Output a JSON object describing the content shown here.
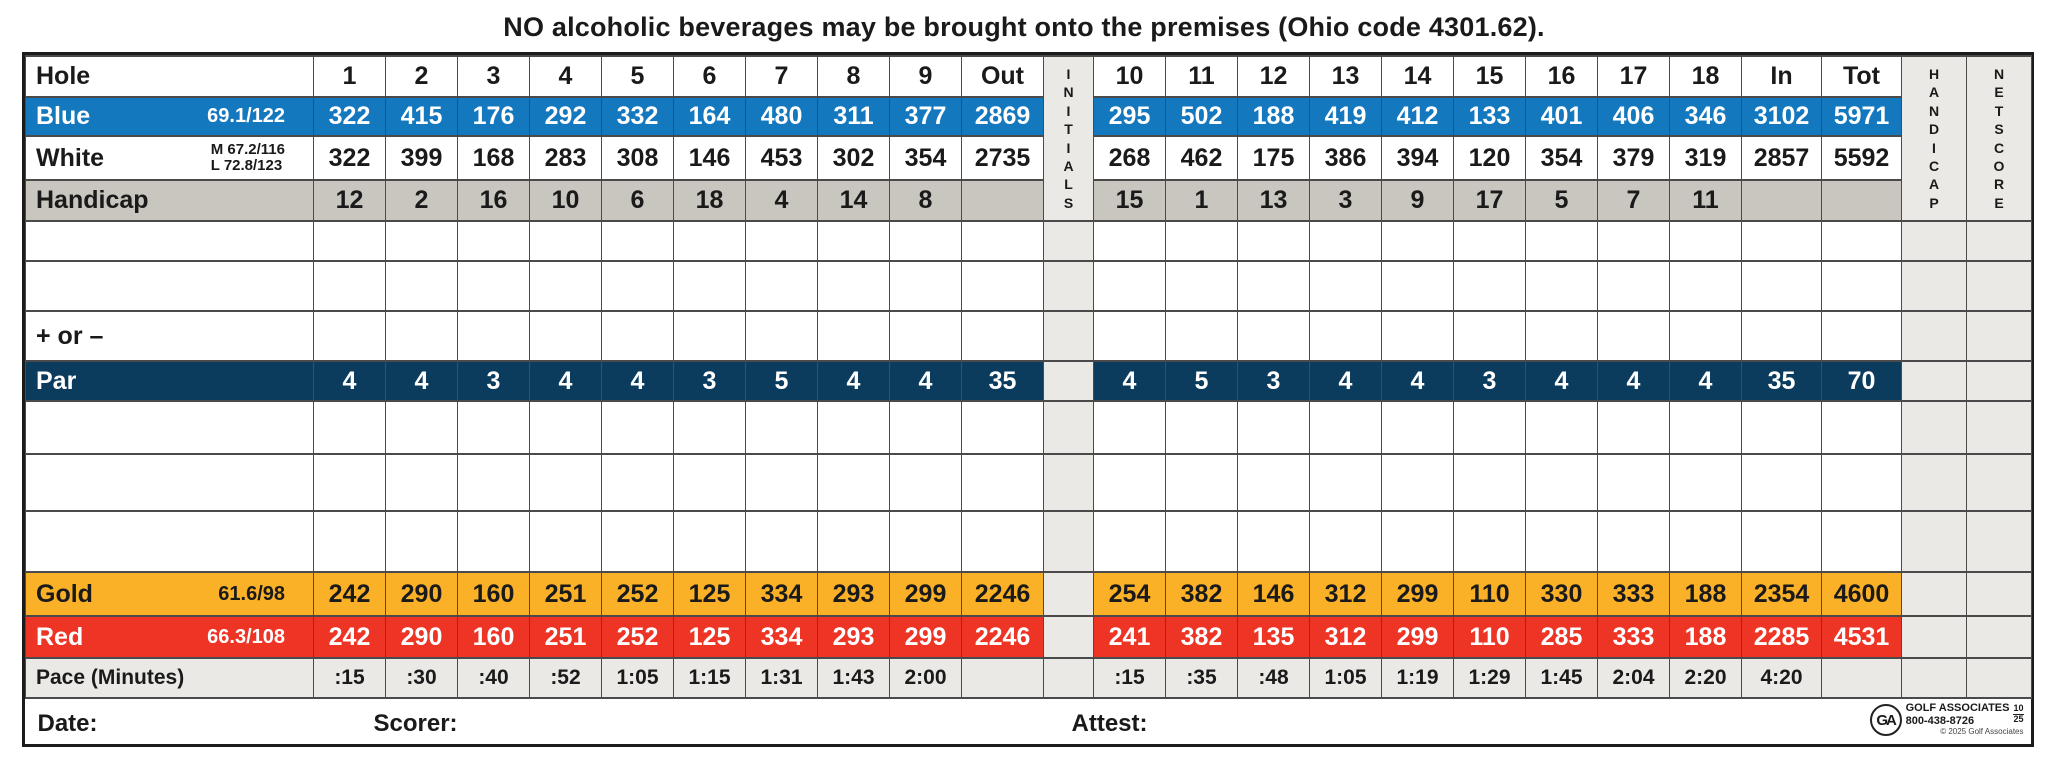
{
  "notice": "NO alcoholic beverages may be brought onto the premises (Ohio code 4301.62).",
  "colors": {
    "blue_tee": "#1478be",
    "par_navy": "#0b3c5e",
    "gold_tee": "#fbb127",
    "red_tee": "#ee3425",
    "handicap_gray": "#c9c5bf",
    "light_gray": "#eae9e6"
  },
  "table": {
    "front_labels": [
      "1",
      "2",
      "3",
      "4",
      "5",
      "6",
      "7",
      "8",
      "9",
      "Out"
    ],
    "back_labels": [
      "10",
      "11",
      "12",
      "13",
      "14",
      "15",
      "16",
      "17",
      "18",
      "In",
      "Tot"
    ],
    "side_columns": {
      "initials": "I\nN\nI\nT\nI\nA\nL\nS",
      "handicap": "H\nA\nN\nD\nI\nC\nA\nP",
      "netscore": "N\nE\nT\nS\nC\nO\nR\nE"
    },
    "rows": [
      {
        "id": "hole",
        "style": "header",
        "label": "Hole",
        "rating": "",
        "front": [
          "1",
          "2",
          "3",
          "4",
          "5",
          "6",
          "7",
          "8",
          "9",
          "Out"
        ],
        "back": [
          "10",
          "11",
          "12",
          "13",
          "14",
          "15",
          "16",
          "17",
          "18",
          "In",
          "Tot"
        ]
      },
      {
        "id": "blue",
        "style": "blue",
        "label": "Blue",
        "rating": "69.1/122",
        "front": [
          "322",
          "415",
          "176",
          "292",
          "332",
          "164",
          "480",
          "311",
          "377",
          "2869"
        ],
        "back": [
          "295",
          "502",
          "188",
          "419",
          "412",
          "133",
          "401",
          "406",
          "346",
          "3102",
          "5971"
        ]
      },
      {
        "id": "white",
        "style": "white",
        "label": "White",
        "rating_lines": [
          "M 67.2/116",
          "L 72.8/123"
        ],
        "front": [
          "322",
          "399",
          "168",
          "283",
          "308",
          "146",
          "453",
          "302",
          "354",
          "2735"
        ],
        "back": [
          "268",
          "462",
          "175",
          "386",
          "394",
          "120",
          "354",
          "379",
          "319",
          "2857",
          "5592"
        ]
      },
      {
        "id": "handicap",
        "style": "gray",
        "label": "Handicap",
        "rating": "",
        "front": [
          "12",
          "2",
          "16",
          "10",
          "6",
          "18",
          "4",
          "14",
          "8",
          ""
        ],
        "back": [
          "15",
          "1",
          "13",
          "3",
          "9",
          "17",
          "5",
          "7",
          "11",
          "",
          ""
        ]
      },
      {
        "id": "empty1",
        "style": "empty",
        "label": "",
        "rating": "",
        "front": [
          "",
          "",
          "",
          "",
          "",
          "",
          "",
          "",
          "",
          ""
        ],
        "back": [
          "",
          "",
          "",
          "",
          "",
          "",
          "",
          "",
          "",
          "",
          ""
        ]
      },
      {
        "id": "empty2",
        "style": "empty",
        "label": "",
        "rating": "",
        "front": [
          "",
          "",
          "",
          "",
          "",
          "",
          "",
          "",
          "",
          ""
        ],
        "back": [
          "",
          "",
          "",
          "",
          "",
          "",
          "",
          "",
          "",
          "",
          ""
        ]
      },
      {
        "id": "plusminus",
        "style": "plus",
        "label": "+ or –",
        "rating": "",
        "front": [
          "",
          "",
          "",
          "",
          "",
          "",
          "",
          "",
          "",
          ""
        ],
        "back": [
          "",
          "",
          "",
          "",
          "",
          "",
          "",
          "",
          "",
          "",
          ""
        ]
      },
      {
        "id": "par",
        "style": "navy",
        "label": "Par",
        "rating": "",
        "front": [
          "4",
          "4",
          "3",
          "4",
          "4",
          "3",
          "5",
          "4",
          "4",
          "35"
        ],
        "back": [
          "4",
          "5",
          "3",
          "4",
          "4",
          "3",
          "4",
          "4",
          "4",
          "35",
          "70"
        ]
      },
      {
        "id": "empty3",
        "style": "empty",
        "label": "",
        "rating": "",
        "front": [
          "",
          "",
          "",
          "",
          "",
          "",
          "",
          "",
          "",
          ""
        ],
        "back": [
          "",
          "",
          "",
          "",
          "",
          "",
          "",
          "",
          "",
          "",
          ""
        ]
      },
      {
        "id": "empty4",
        "style": "empty",
        "label": "",
        "rating": "",
        "front": [
          "",
          "",
          "",
          "",
          "",
          "",
          "",
          "",
          "",
          ""
        ],
        "back": [
          "",
          "",
          "",
          "",
          "",
          "",
          "",
          "",
          "",
          "",
          ""
        ]
      },
      {
        "id": "empty5",
        "style": "empty",
        "label": "",
        "rating": "",
        "front": [
          "",
          "",
          "",
          "",
          "",
          "",
          "",
          "",
          "",
          ""
        ],
        "back": [
          "",
          "",
          "",
          "",
          "",
          "",
          "",
          "",
          "",
          "",
          ""
        ]
      },
      {
        "id": "gold",
        "style": "gold",
        "label": "Gold",
        "rating": "61.6/98",
        "front": [
          "242",
          "290",
          "160",
          "251",
          "252",
          "125",
          "334",
          "293",
          "299",
          "2246"
        ],
        "back": [
          "254",
          "382",
          "146",
          "312",
          "299",
          "110",
          "330",
          "333",
          "188",
          "2354",
          "4600"
        ]
      },
      {
        "id": "red",
        "style": "red",
        "label": "Red",
        "rating": "66.3/108",
        "front": [
          "242",
          "290",
          "160",
          "251",
          "252",
          "125",
          "334",
          "293",
          "299",
          "2246"
        ],
        "back": [
          "241",
          "382",
          "135",
          "312",
          "299",
          "110",
          "285",
          "333",
          "188",
          "2285",
          "4531"
        ]
      },
      {
        "id": "pace",
        "style": "pace",
        "label": "Pace (Minutes)",
        "rating": "",
        "front": [
          ":15",
          ":30",
          ":40",
          ":52",
          "1:05",
          "1:15",
          "1:31",
          "1:43",
          "2:00",
          ""
        ],
        "back": [
          ":15",
          ":35",
          ":48",
          "1:05",
          "1:19",
          "1:29",
          "1:45",
          "2:04",
          "2:20",
          "4:20",
          ""
        ]
      }
    ]
  },
  "footer": {
    "date_label": "Date:",
    "scorer_label": "Scorer:",
    "attest_label": "Attest:",
    "logo": {
      "monogram": "GA",
      "line1": "GOLF ASSOCIATES",
      "line2": "800-438-8726",
      "code_top": "10",
      "code_bottom": "25",
      "copyright": "© 2025 Golf Associates"
    }
  }
}
